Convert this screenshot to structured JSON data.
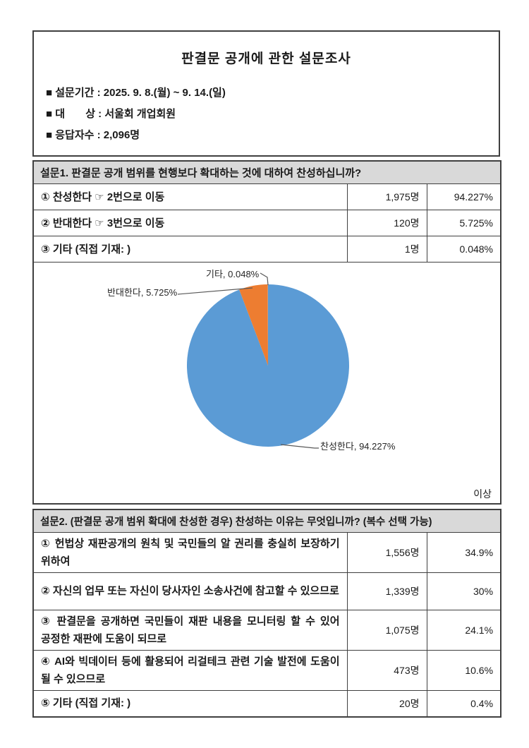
{
  "document": {
    "title": "판결문 공개에 관한 설문조사",
    "info_lines": [
      "■ 설문기간 : 2025. 9. 8.(월) ~ 9. 14.(일)",
      "■ 대       상 : 서울회 개업회원",
      "■ 응답자수 : 2,096명"
    ],
    "closing_note": "이상"
  },
  "question1": {
    "header": "설문1. 판결문 공개 범위를 현행보다 확대하는 것에 대하여 찬성하십니까?",
    "rows": [
      {
        "label": "① 찬성한다 ☞ 2번으로 이동",
        "count": "1,975명",
        "percent": "94.227%"
      },
      {
        "label": "② 반대한다 ☞ 3번으로 이동",
        "count": "120명",
        "percent": "5.725%"
      },
      {
        "label": "③ 기타 (직접 기재: )",
        "count": "1명",
        "percent": "0.048%"
      }
    ]
  },
  "chart_data": {
    "type": "pie",
    "title": "",
    "labels": [
      "찬성한다",
      "반대한다",
      "기타"
    ],
    "values": [
      94.227,
      5.725,
      0.048
    ],
    "counts": [
      1975,
      120,
      1
    ],
    "colors": [
      "#5B9BD5",
      "#ED7D31",
      "#A5A5A5"
    ],
    "callouts": [
      "기타, 0.048%",
      "반대한다, 5.725%",
      "찬성한다, 94.227%"
    ],
    "legend": "none",
    "start_angle_deg": 0,
    "direction": "clockwise"
  },
  "question2": {
    "header": "설문2. (판결문 공개 범위 확대에 찬성한 경우) 찬성하는 이유는 무엇입니까? (복수 선택 가능)",
    "rows": [
      {
        "label": "① 헌법상 재판공개의 원칙 및 국민들의 알 권리를 충실히 보장하기 위하여",
        "count": "1,556명",
        "percent": "34.9%"
      },
      {
        "label": "② 자신의 업무 또는 자신이 당사자인 소송사건에 참고할 수 있으므로",
        "count": "1,339명",
        "percent": "30%"
      },
      {
        "label": "③ 판결문을 공개하면 국민들이 재판 내용을 모니터링 할 수 있어 공정한 재판에 도움이 되므로",
        "count": "1,075명",
        "percent": "24.1%"
      },
      {
        "label": "④ AI와 빅데이터 등에 활용되어 리걸테크 관련 기술 발전에 도움이 될 수 있으므로",
        "count": "473명",
        "percent": "10.6%"
      },
      {
        "label": "⑤ 기타 (직접 기재: )",
        "count": "20명",
        "percent": "0.4%"
      }
    ]
  },
  "colors": {
    "section_header_fill": "#d9d9d9",
    "table_border": "#3f3f3f",
    "pie_agree": "#5B9BD5",
    "pie_oppose": "#ED7D31",
    "pie_other": "#A5A5A5"
  }
}
